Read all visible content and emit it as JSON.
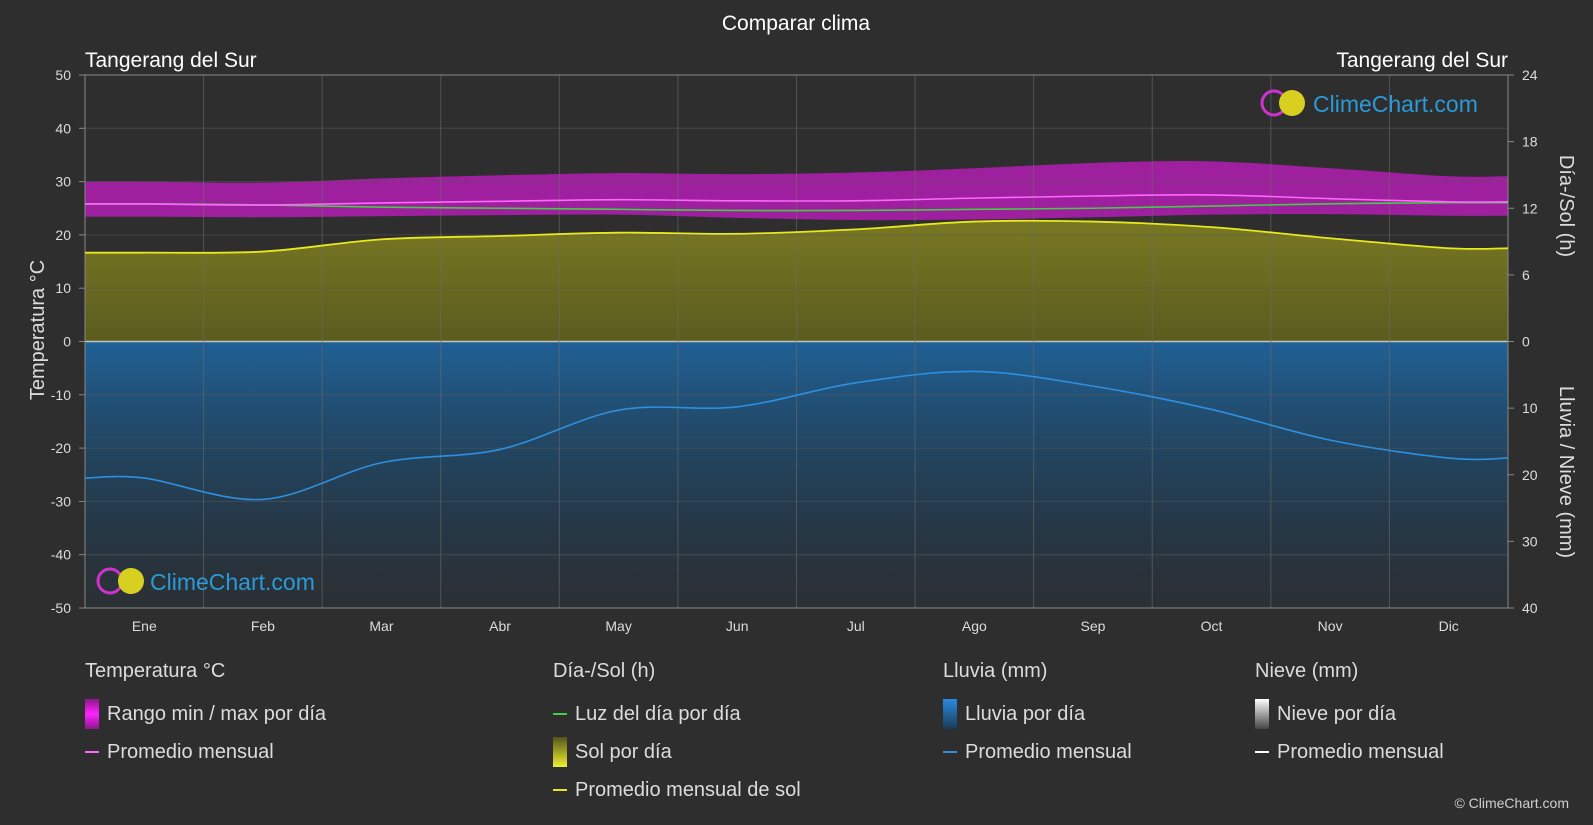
{
  "chart_data": {
    "type": "area",
    "title": "Comparar clima",
    "location_left": "Tangerang del Sur",
    "location_right": "Tangerang del Sur",
    "watermark": "ClimeChart.com",
    "y_left_label": "Temperatura °C",
    "y_left_lim": [
      -50,
      50
    ],
    "y_left_ticks": [
      "50",
      "40",
      "30",
      "20",
      "10",
      "0",
      "-10",
      "-20",
      "-30",
      "-40",
      "-50"
    ],
    "y_right_top_label": "Día-/Sol (h)",
    "y_right_top_ticks": [
      "24",
      "18",
      "12",
      "6",
      "0"
    ],
    "y_right_bottom_label": "Lluvia / Nieve (mm)",
    "y_right_bottom_ticks": [
      "10",
      "20",
      "30",
      "40"
    ],
    "months": [
      "Ene",
      "Feb",
      "Mar",
      "Abr",
      "May",
      "Jun",
      "Jul",
      "Ago",
      "Sep",
      "Oct",
      "Nov",
      "Dic"
    ],
    "series": [
      {
        "name": "Promedio mensual",
        "group": "Temperatura °C",
        "unit": "°C",
        "color": "#ff66ff",
        "values": [
          25.8,
          25.6,
          26.0,
          26.3,
          26.6,
          26.4,
          26.4,
          26.9,
          27.3,
          27.5,
          26.8,
          26.2
        ]
      },
      {
        "name": "Rango min / max por día",
        "group": "Temperatura °C",
        "unit": "°C",
        "min": [
          23.4,
          23.3,
          23.5,
          23.7,
          23.8,
          23.2,
          22.8,
          22.9,
          23.3,
          23.8,
          23.9,
          23.6
        ],
        "max": [
          30.0,
          29.8,
          30.6,
          31.2,
          31.6,
          31.4,
          31.7,
          32.5,
          33.5,
          33.8,
          32.5,
          31.0
        ]
      },
      {
        "name": "Luz del día por día",
        "group": "Día-/Sol (h)",
        "unit": "h",
        "color": "#44cc44",
        "values": [
          12.4,
          12.3,
          12.1,
          12.0,
          11.9,
          11.8,
          11.8,
          11.9,
          12.0,
          12.2,
          12.4,
          12.5
        ]
      },
      {
        "name": "Promedio mensual de sol",
        "group": "Día-/Sol (h)",
        "unit": "h",
        "color": "#e8e820",
        "values": [
          8.0,
          8.1,
          9.2,
          9.5,
          9.8,
          9.7,
          10.1,
          10.8,
          10.8,
          10.3,
          9.3,
          8.4
        ]
      },
      {
        "name": "Promedio mensual",
        "group": "Lluvia (mm)",
        "unit": "mm",
        "color": "#2f8fdf",
        "values": [
          20.5,
          23.7,
          18.2,
          16.2,
          10.3,
          9.8,
          6.2,
          4.5,
          6.7,
          10.2,
          14.8,
          17.5
        ]
      },
      {
        "name": "Promedio mensual",
        "group": "Nieve (mm)",
        "unit": "mm",
        "color": "#ffffff",
        "values": [
          0,
          0,
          0,
          0,
          0,
          0,
          0,
          0,
          0,
          0,
          0,
          0
        ]
      }
    ]
  },
  "legend": {
    "temp": {
      "title": "Temperatura °C",
      "item1": "Rango min / max por día",
      "item2": "Promedio mensual"
    },
    "sun": {
      "title": "Día-/Sol (h)",
      "item1": "Luz del día por día",
      "item2": "Sol por día",
      "item3": "Promedio mensual de sol"
    },
    "rain": {
      "title": "Lluvia (mm)",
      "item1": "Lluvia por día",
      "item2": "Promedio mensual"
    },
    "snow": {
      "title": "Nieve (mm)",
      "item1": "Nieve por día",
      "item2": "Promedio mensual"
    }
  },
  "copyright": "© ClimeChart.com",
  "colors": {
    "background": "#2e2e2e",
    "grid": "#555555",
    "temp_range": "#d020d0",
    "sun_fill": "#8a8a20",
    "rain_fill": "#1a5a90"
  }
}
